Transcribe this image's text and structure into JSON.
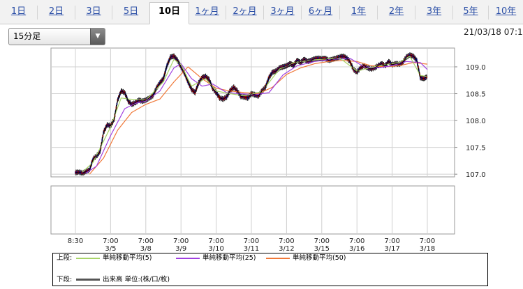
{
  "tabs": [
    {
      "label": "1日",
      "active": false
    },
    {
      "label": "2日",
      "active": false
    },
    {
      "label": "3日",
      "active": false
    },
    {
      "label": "5日",
      "active": false
    },
    {
      "label": "10日",
      "active": true
    },
    {
      "label": "1ヶ月",
      "active": false
    },
    {
      "label": "2ヶ月",
      "active": false
    },
    {
      "label": "3ヶ月",
      "active": false
    },
    {
      "label": "6ヶ月",
      "active": false
    },
    {
      "label": "1年",
      "active": false
    },
    {
      "label": "2年",
      "active": false
    },
    {
      "label": "3年",
      "active": false
    },
    {
      "label": "5年",
      "active": false
    },
    {
      "label": "10年",
      "active": false
    }
  ],
  "interval_select": {
    "value": "15分足"
  },
  "timestamp": "21/03/18 07:1",
  "colors": {
    "price": "#000000",
    "up": "#c00000",
    "down": "#1010a0",
    "ma5": "#a8d468",
    "ma25": "#a040e0",
    "ma50": "#f07838",
    "grid": "#d0d0d0",
    "frame": "#999999"
  },
  "chart_data": {
    "type": "line",
    "x_tick_labels": [
      {
        "time": "8:30",
        "date": ""
      },
      {
        "time": "7:00",
        "date": "3/5"
      },
      {
        "time": "7:00",
        "date": "3/8"
      },
      {
        "time": "7:00",
        "date": "3/9"
      },
      {
        "time": "7:00",
        "date": "3/10"
      },
      {
        "time": "7:00",
        "date": "3/11"
      },
      {
        "time": "7:00",
        "date": "3/12"
      },
      {
        "time": "7:00",
        "date": "3/15"
      },
      {
        "time": "7:00",
        "date": "3/16"
      },
      {
        "time": "7:00",
        "date": "3/17"
      },
      {
        "time": "7:00",
        "date": "3/18"
      }
    ],
    "y_ticks": [
      "109.0",
      "108.5",
      "108.0",
      "107.5",
      "107.0"
    ],
    "ylim": [
      106.95,
      109.35
    ],
    "grid": true,
    "series": [
      {
        "name": "",
        "key": "price",
        "x": [
          0.0,
          0.1,
          0.2,
          0.3,
          0.4,
          0.5,
          0.6,
          0.7,
          0.8,
          0.9,
          1.0,
          1.1,
          1.2,
          1.3,
          1.4,
          1.5,
          1.6,
          1.7,
          1.8,
          1.9,
          2.0,
          2.1,
          2.2,
          2.3,
          2.4,
          2.5,
          2.6,
          2.7,
          2.8,
          2.9,
          3.0,
          3.1,
          3.2,
          3.3,
          3.4,
          3.5,
          3.6,
          3.7,
          3.8,
          3.9,
          4.0,
          4.1,
          4.2,
          4.3,
          4.4,
          4.5,
          4.6,
          4.7,
          4.8,
          4.9,
          5.0,
          5.1,
          5.2,
          5.3,
          5.4,
          5.5,
          5.6,
          5.7,
          5.8,
          5.9,
          6.0,
          6.1,
          6.2,
          6.3,
          6.4,
          6.5,
          6.6,
          6.7,
          6.8,
          6.9,
          7.0,
          7.1,
          7.2,
          7.3,
          7.4,
          7.5,
          7.6,
          7.7,
          7.8,
          7.9,
          8.0,
          8.1,
          8.2,
          8.3,
          8.4,
          8.5,
          8.6,
          8.7,
          8.8,
          8.9,
          9.0,
          9.1,
          9.2,
          9.3,
          9.4,
          9.5,
          9.6,
          9.7,
          9.8,
          9.9,
          10.0
        ],
        "values": [
          107.03,
          107.04,
          107.02,
          107.05,
          107.08,
          107.28,
          107.34,
          107.42,
          107.78,
          107.92,
          107.9,
          108.02,
          108.38,
          108.55,
          108.52,
          108.36,
          108.3,
          108.33,
          108.38,
          108.36,
          108.38,
          108.42,
          108.46,
          108.6,
          108.7,
          108.78,
          109.02,
          109.18,
          109.2,
          109.12,
          109.0,
          108.88,
          108.72,
          108.58,
          108.52,
          108.7,
          108.8,
          108.82,
          108.76,
          108.6,
          108.52,
          108.42,
          108.4,
          108.44,
          108.56,
          108.62,
          108.55,
          108.45,
          108.44,
          108.42,
          108.5,
          108.48,
          108.46,
          108.55,
          108.62,
          108.8,
          108.9,
          108.92,
          108.98,
          109.0,
          109.02,
          109.06,
          109.03,
          109.12,
          109.08,
          109.14,
          109.1,
          109.12,
          109.15,
          109.16,
          109.15,
          109.16,
          109.12,
          109.14,
          109.16,
          109.18,
          109.2,
          109.17,
          109.1,
          108.95,
          108.9,
          108.98,
          109.02,
          108.98,
          108.96,
          108.98,
          109.02,
          109.06,
          109.02,
          109.1,
          109.04,
          109.06,
          109.05,
          109.08,
          109.18,
          109.22,
          109.2,
          109.12,
          108.8,
          108.78,
          108.82
        ]
      },
      {
        "name": "単純移動平均(5)",
        "key": "ma5",
        "x": [
          0.2,
          0.5,
          1.0,
          1.3,
          1.5,
          2.0,
          2.5,
          2.8,
          3.0,
          3.3,
          3.7,
          4.0,
          4.4,
          4.8,
          5.3,
          5.8,
          6.2,
          6.8,
          7.5,
          8.0,
          8.6,
          9.2,
          9.5,
          9.8,
          10.0
        ],
        "values": [
          107.04,
          107.22,
          107.88,
          108.42,
          108.4,
          108.38,
          108.72,
          109.14,
          109.04,
          108.64,
          108.78,
          108.55,
          108.5,
          108.46,
          108.54,
          108.96,
          109.08,
          109.13,
          109.17,
          108.92,
          109.02,
          109.08,
          109.2,
          108.84,
          108.82
        ]
      },
      {
        "name": "単純移動平均(25)",
        "key": "ma25",
        "x": [
          0.3,
          0.6,
          1.0,
          1.4,
          1.7,
          2.0,
          2.4,
          2.8,
          3.0,
          3.3,
          3.6,
          3.9,
          4.3,
          4.7,
          5.1,
          5.5,
          5.9,
          6.3,
          6.8,
          7.3,
          7.8,
          8.2,
          8.6,
          9.0,
          9.4,
          9.8,
          10.0
        ],
        "values": [
          107.02,
          107.15,
          107.72,
          108.22,
          108.32,
          108.36,
          108.55,
          108.98,
          109.06,
          108.78,
          108.64,
          108.68,
          108.52,
          108.5,
          108.48,
          108.52,
          108.85,
          109.02,
          109.1,
          109.14,
          109.16,
          109.0,
          108.98,
          109.02,
          109.1,
          109.08,
          108.95
        ]
      },
      {
        "name": "単純移動平均(50)",
        "key": "ma50",
        "x": [
          0.4,
          0.8,
          1.2,
          1.6,
          2.0,
          2.4,
          2.8,
          3.2,
          3.6,
          4.0,
          4.4,
          4.8,
          5.2,
          5.6,
          6.0,
          6.4,
          6.8,
          7.2,
          7.6,
          8.0,
          8.4,
          8.8,
          9.2,
          9.6,
          10.0
        ],
        "values": [
          107.0,
          107.3,
          107.82,
          108.15,
          108.3,
          108.4,
          108.72,
          109.0,
          108.78,
          108.6,
          108.55,
          108.52,
          108.5,
          108.62,
          108.86,
          108.98,
          109.06,
          109.1,
          109.12,
          109.1,
          109.02,
          109.0,
          109.02,
          109.08,
          109.05
        ]
      }
    ],
    "volume_panel": {
      "values": []
    }
  },
  "legend": {
    "upper_label": "上段:",
    "lower_label": "下段:",
    "items": [
      {
        "key": "ma5",
        "label": "単純移動平均(5)"
      },
      {
        "key": "ma25",
        "label": "単純移動平均(25)"
      },
      {
        "key": "ma50",
        "label": "単純移動平均(50)"
      }
    ],
    "volume_label": "出来高 単位:(株/口/枚)"
  }
}
